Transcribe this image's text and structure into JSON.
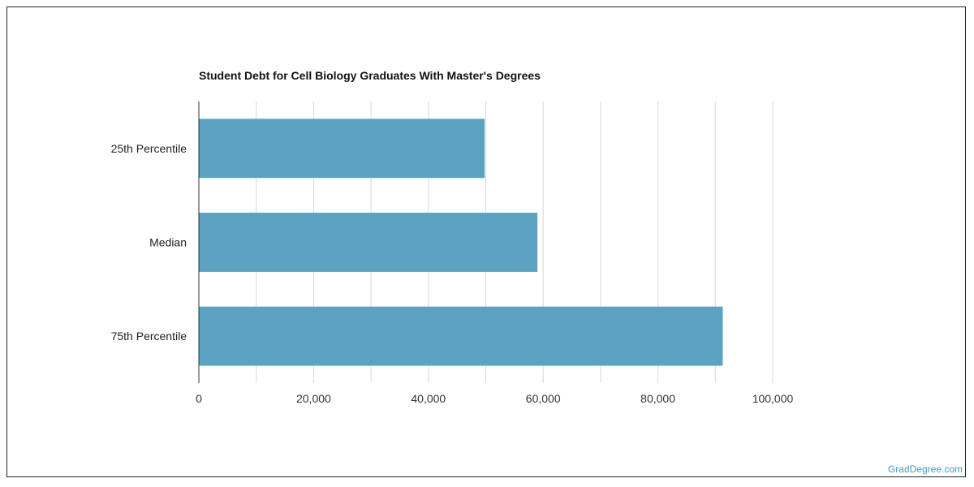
{
  "chart_data": {
    "type": "bar",
    "orientation": "horizontal",
    "title": "Student Debt for Cell Biology Graduates With Master's Degrees",
    "xlabel": "",
    "ylabel": "",
    "categories": [
      "25th Percentile",
      "Median",
      "75th Percentile"
    ],
    "values": [
      49800,
      59000,
      91300
    ],
    "xlim": [
      0,
      100000
    ],
    "x_ticks": [
      0,
      20000,
      40000,
      60000,
      80000,
      100000
    ],
    "x_tick_labels": [
      "0",
      "20,000",
      "40,000",
      "60,000",
      "80,000",
      "100,000"
    ],
    "grid": true,
    "legend": "none",
    "bar_color": "#5ba3c0",
    "grid_color": "#d8d8d8"
  },
  "watermark": "GradDegree.com"
}
